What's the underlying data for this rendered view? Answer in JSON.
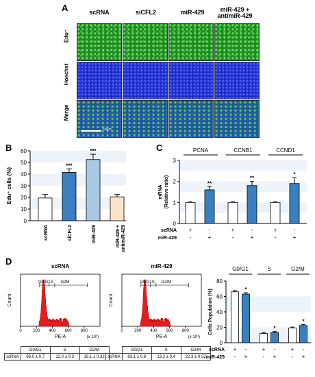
{
  "panelA": {
    "letter": "A",
    "columns": [
      "scRNA",
      "siCFL2",
      "miR-429",
      "miR-429 +",
      "antimiR-429"
    ],
    "rows": [
      "Edu⁺",
      "Hoechst",
      "Merge"
    ],
    "scalebar": "50μm",
    "colors": {
      "edu": "#1e8a1e",
      "hoechst": "#1a2ac0",
      "merge": "#1c5a8a"
    }
  },
  "panelB": {
    "letter": "B",
    "ylabel": "Edu⁺ cells (%)",
    "chart_data": {
      "type": "bar",
      "categories": [
        "scRNA",
        "siCFL2",
        "miR-429",
        "miR-429 + antimiR-429"
      ],
      "values": [
        19.5,
        41.5,
        52.5,
        20.5
      ],
      "errors": [
        3,
        3,
        4.5,
        2
      ],
      "significance": [
        "",
        "***",
        "***",
        ""
      ],
      "ylim": [
        0,
        60
      ],
      "yticks": [
        "0",
        "10",
        "20",
        "30",
        "40",
        "50",
        "60"
      ],
      "xtick_labels": [
        "scRNA",
        "siCFL2",
        "miR-429",
        "miR-429 +",
        "antimiR-429"
      ],
      "colors": [
        "#ffffff",
        "#3a7fc0",
        "#a9c8e4",
        "#fbe3c8"
      ]
    }
  },
  "panelC": {
    "letter": "C",
    "ylabel": "mRNA",
    "ylabel2": "(Relative ratio)",
    "chart_data": {
      "type": "bar",
      "groups": [
        "PCNA",
        "CCNB1",
        "CCND1"
      ],
      "series": [
        {
          "name": "scRNA",
          "values": [
            1.0,
            1.0,
            1.0
          ],
          "errors": [
            0.03,
            0.03,
            0.03
          ]
        },
        {
          "name": "miR-429",
          "values": [
            1.6,
            1.8,
            1.9
          ],
          "errors": [
            0.15,
            0.2,
            0.28
          ]
        }
      ],
      "significance": [
        "**",
        "**",
        "*"
      ],
      "ylim": [
        0,
        3
      ],
      "yticks": [
        "0",
        "1",
        "2",
        "3"
      ],
      "condition_rows": [
        {
          "label": "scRNA",
          "signs": [
            "+",
            "-",
            "+",
            "-",
            "+",
            "-"
          ]
        },
        {
          "label": "miR-429",
          "signs": [
            "-",
            "+",
            "-",
            "+",
            "-",
            "+"
          ]
        }
      ],
      "colors": [
        "#ffffff",
        "#3a7fc0"
      ]
    }
  },
  "panelD": {
    "letter": "D",
    "histograms": [
      {
        "title": "scRNA",
        "xlabel": "PE-A",
        "xunit": "(x 10³)",
        "ylabel": "Count",
        "xticks": [
          "0",
          "200",
          "400",
          "600",
          "800"
        ],
        "gates": [
          "G0/G1",
          "S",
          "G2M"
        ],
        "table": {
          "headers": [
            "G0/G1",
            "S",
            "G2/M"
          ],
          "row_label": "scRNA",
          "values": [
            "66.0 ± 0.7",
            "12.0 ± 0.3",
            "19.1 ± 0.32"
          ]
        }
      },
      {
        "title": "miR-429",
        "xlabel": "PE-A",
        "xunit": "(x 10³)",
        "ylabel": "Count",
        "xticks": [
          "0",
          "200",
          "400",
          "600",
          "800"
        ],
        "gates": [
          "G0/G1",
          "S",
          "G2/M"
        ],
        "table": {
          "headers": [
            "G0/G1",
            "S",
            "G2/M"
          ],
          "row_label": "scRNA",
          "values": [
            "63.1 ± 0.8",
            "13.2 ± 0.4",
            "22.3 ± 0.52"
          ]
        }
      }
    ],
    "bar": {
      "ylabel": "Cells Population (%)",
      "chart_data": {
        "type": "bar",
        "groups": [
          "G0/G1",
          "S",
          "G2/M"
        ],
        "series": [
          {
            "name": "scRNA",
            "values": [
              66.0,
              12.0,
              19.1
            ],
            "errors": [
              0.7,
              0.3,
              0.32
            ]
          },
          {
            "name": "miR-429",
            "values": [
              63.1,
              13.2,
              22.3
            ],
            "errors": [
              0.8,
              0.4,
              0.52
            ]
          }
        ],
        "significance": [
          "*",
          "*",
          "*"
        ],
        "ylim": [
          0,
          80
        ],
        "yticks": [
          "0",
          "20",
          "40",
          "60",
          "80"
        ],
        "condition_rows": [
          {
            "label": "scRNA",
            "signs": [
              "+",
              "-",
              "+",
              "-",
              "+",
              "-"
            ]
          },
          {
            "label": "miR-429",
            "signs": [
              "-",
              "+",
              "-",
              "+",
              "-",
              "+"
            ]
          }
        ],
        "colors": [
          "#ffffff",
          "#3a7fc0"
        ]
      }
    }
  }
}
